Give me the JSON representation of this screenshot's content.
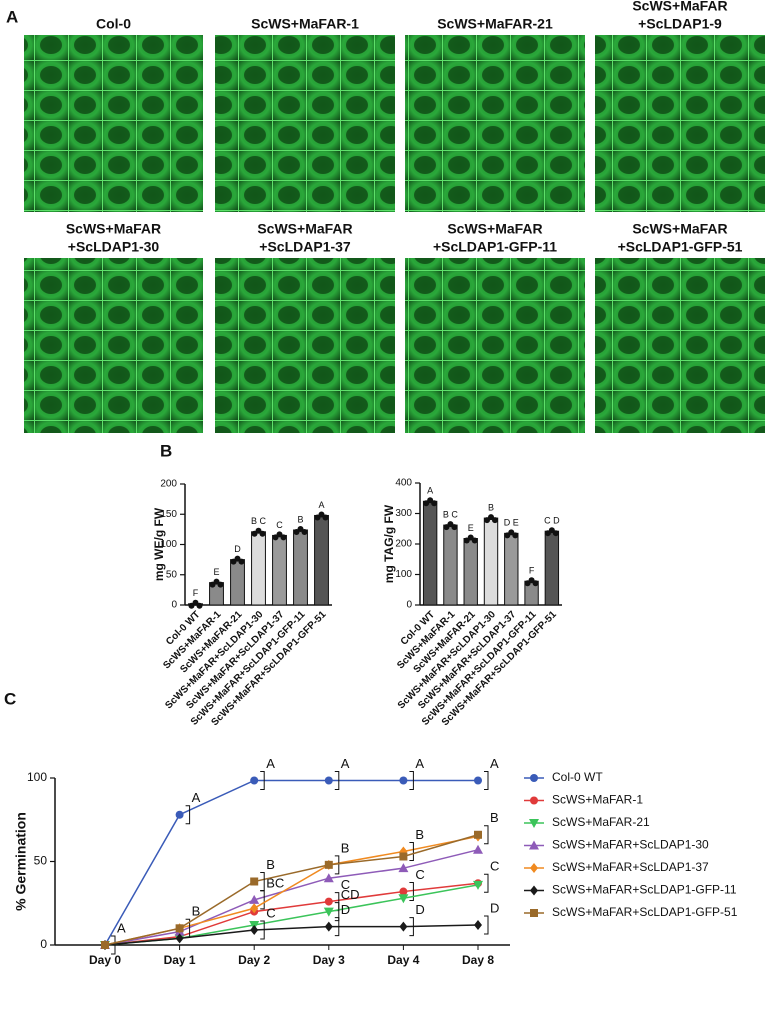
{
  "figure": {
    "panel_labels": [
      "A",
      "B",
      "C"
    ],
    "micrographs": [
      {
        "title": [
          "Col-0"
        ]
      },
      {
        "title": [
          "ScWS+MaFAR-1"
        ]
      },
      {
        "title": [
          "ScWS+MaFAR-21"
        ]
      },
      {
        "title": [
          "ScWS+MaFAR",
          "+ScLDAP1-9"
        ]
      },
      {
        "title": [
          "ScWS+MaFAR",
          "+ScLDAP1-30"
        ]
      },
      {
        "title": [
          "ScWS+MaFAR",
          "+ScLDAP1-37"
        ]
      },
      {
        "title": [
          "ScWS+MaFAR",
          "+ScLDAP1-GFP-11"
        ]
      },
      {
        "title": [
          "ScWS+MaFAR",
          "+ScLDAP1-GFP-51"
        ]
      }
    ]
  },
  "chart_data": [
    {
      "type": "bar",
      "ylabel": "mg WE/g FW",
      "categories": [
        "Col-0 WT",
        "ScWS+MaFAR-1",
        "ScWS+MaFAR-21",
        "ScWS+MaFAR+ScLDAP1-30",
        "ScWS+MaFAR+ScLDAP1-37",
        "ScWS+MaFAR+ScLDAP1-GFP-11",
        "ScWS+MaFAR+ScLDAP1-GFP-51"
      ],
      "values": [
        2,
        37,
        75,
        121,
        115,
        124,
        148
      ],
      "letters": [
        "F",
        "E",
        "D",
        "B C",
        "C",
        "B",
        "A"
      ],
      "colors": [
        "#555555",
        "#8a8a8a",
        "#8a8a8a",
        "#dcdcdc",
        "#9a9a9a",
        "#8a8a8a",
        "#555555"
      ],
      "ylim": [
        0,
        200
      ],
      "yticks": [
        0,
        50,
        100,
        150,
        200
      ]
    },
    {
      "type": "bar",
      "ylabel": "mg TAG/g FW",
      "categories": [
        "Col-0 WT",
        "ScWS+MaFAR-1",
        "ScWS+MaFAR-21",
        "ScWS+MaFAR+ScLDAP1-30",
        "ScWS+MaFAR+ScLDAP1-37",
        "ScWS+MaFAR+ScLDAP1-GFP-11",
        "ScWS+MaFAR+ScLDAP1-GFP-51"
      ],
      "values": [
        340,
        262,
        218,
        285,
        235,
        78,
        242
      ],
      "letters": [
        "A",
        "B C",
        "E",
        "B",
        "D E",
        "F",
        "C D"
      ],
      "colors": [
        "#555555",
        "#8a8a8a",
        "#8a8a8a",
        "#dcdcdc",
        "#9a9a9a",
        "#8a8a8a",
        "#555555"
      ],
      "ylim": [
        0,
        400
      ],
      "yticks": [
        0,
        100,
        200,
        300,
        400
      ]
    },
    {
      "type": "line",
      "ylabel": "% Germination",
      "categories": [
        "Day 0",
        "Day 1",
        "Day 2",
        "Day 3",
        "Day 4",
        "Day 8"
      ],
      "ylim": [
        0,
        100
      ],
      "yticks": [
        0,
        50,
        100
      ],
      "series": [
        {
          "name": "Col-0 WT",
          "color": "#3a5bb8",
          "marker": "circle",
          "values": [
            0,
            78,
            98.5,
            98.5,
            98.5,
            98.5
          ],
          "letters": [
            "A",
            "A",
            "A",
            "A",
            "A",
            "A"
          ]
        },
        {
          "name": "ScWS+MaFAR-1",
          "color": "#e03a3a",
          "marker": "circle",
          "values": [
            0,
            5,
            20,
            26,
            32,
            37
          ],
          "letters": [
            null,
            null,
            null,
            "C",
            "C",
            "C"
          ]
        },
        {
          "name": "ScWS+MaFAR-21",
          "color": "#3bc45a",
          "marker": "triangle-down",
          "values": [
            0,
            4,
            12,
            20,
            28,
            36
          ],
          "letters": [
            null,
            null,
            null,
            "CD",
            null,
            null
          ]
        },
        {
          "name": "ScWS+MaFAR+ScLDAP1-30",
          "color": "#8e5bb8",
          "marker": "triangle-up",
          "values": [
            0,
            8,
            27,
            40,
            46,
            57
          ],
          "letters": [
            null,
            null,
            "BC",
            null,
            null,
            null
          ]
        },
        {
          "name": "ScWS+MaFAR+ScLDAP1-37",
          "color": "#f08a20",
          "marker": "diamond",
          "values": [
            0,
            10,
            22,
            48,
            56,
            65
          ],
          "letters": [
            null,
            "B",
            null,
            "B",
            "B",
            null
          ]
        },
        {
          "name": "ScWS+MaFAR+ScLDAP1-GFP-11",
          "color": "#1a1a1a",
          "marker": "diamond",
          "values": [
            0,
            4,
            9,
            11,
            11,
            12
          ],
          "letters": [
            null,
            null,
            "C",
            "D",
            "D",
            "D"
          ]
        },
        {
          "name": "ScWS+MaFAR+ScLDAP1-GFP-51",
          "color": "#9a6a2a",
          "marker": "square",
          "values": [
            0,
            10,
            38,
            48,
            53,
            66
          ],
          "letters": [
            null,
            null,
            "B",
            null,
            null,
            "B"
          ]
        }
      ]
    }
  ]
}
